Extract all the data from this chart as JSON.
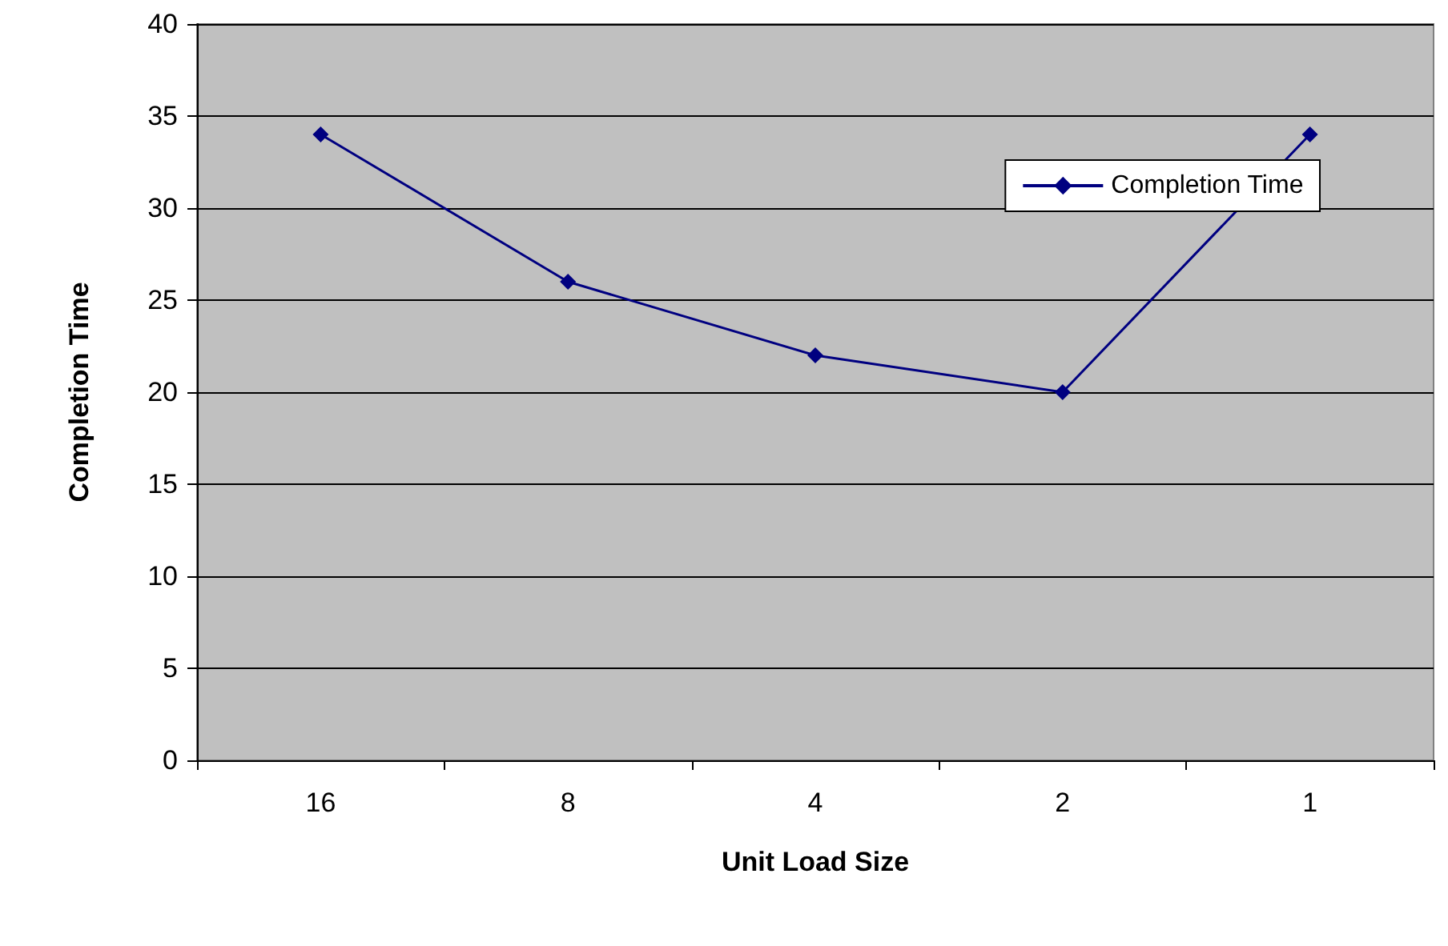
{
  "chart_data": {
    "type": "line",
    "xlabel": "Unit Load Size",
    "ylabel": "Completion Time",
    "categories": [
      "16",
      "8",
      "4",
      "2",
      "1"
    ],
    "series": [
      {
        "name": "Completion Time",
        "color": "#000080",
        "values": [
          34,
          26,
          22,
          20,
          34
        ]
      }
    ],
    "ylim": [
      0,
      40
    ],
    "yticks": [
      0,
      5,
      10,
      15,
      20,
      25,
      30,
      35,
      40
    ],
    "grid": "y",
    "legend": "top right",
    "marker": "diamond",
    "line_style": "solid"
  }
}
